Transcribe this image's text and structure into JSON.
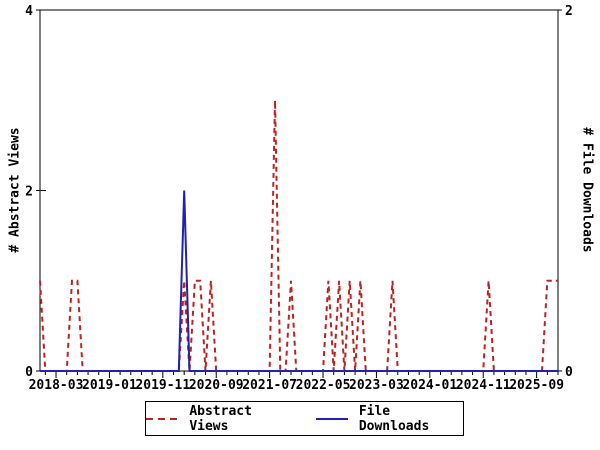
{
  "chart_data": {
    "type": "line",
    "title": "",
    "x_axis": {
      "tick_labels": [
        "2018-03",
        "2019-01",
        "2019-11",
        "2020-09",
        "2021-07",
        "2022-05",
        "2023-03",
        "2024-01",
        "2024-11",
        "2025-09"
      ],
      "tick_months": [
        0,
        10,
        20,
        30,
        40,
        50,
        60,
        70,
        80,
        90
      ],
      "range_months": [
        -3,
        94
      ],
      "minor_tick_step_months": 2
    },
    "y_left": {
      "label": "# Abstract Views",
      "range": [
        0,
        4
      ],
      "ticks": [
        0,
        2,
        4
      ]
    },
    "y_right": {
      "label": "# File Downloads",
      "range": [
        0,
        2
      ],
      "ticks": [
        0,
        2
      ]
    },
    "grid": "off",
    "legend_position": "bottom-center",
    "series": [
      {
        "name": "Abstract Views",
        "color": "#bb2222",
        "style": "dashed",
        "axis": "left",
        "points": [
          [
            "2017-12",
            1
          ],
          [
            "2018-01",
            0
          ],
          [
            "2018-05",
            0
          ],
          [
            "2018-06",
            1
          ],
          [
            "2018-07",
            1
          ],
          [
            "2018-08",
            0
          ],
          [
            "2020-02",
            0
          ],
          [
            "2020-03",
            1
          ],
          [
            "2020-04",
            0
          ],
          [
            "2020-05",
            1
          ],
          [
            "2020-06",
            1
          ],
          [
            "2020-07",
            0
          ],
          [
            "2020-08",
            1
          ],
          [
            "2020-09",
            0
          ],
          [
            "2021-07",
            0
          ],
          [
            "2021-08",
            3
          ],
          [
            "2021-09",
            0
          ],
          [
            "2021-10",
            0
          ],
          [
            "2021-11",
            1
          ],
          [
            "2021-12",
            0
          ],
          [
            "2022-05",
            0
          ],
          [
            "2022-06",
            1
          ],
          [
            "2022-07",
            0
          ],
          [
            "2022-08",
            1
          ],
          [
            "2022-09",
            0
          ],
          [
            "2022-10",
            1
          ],
          [
            "2022-11",
            0
          ],
          [
            "2022-12",
            1
          ],
          [
            "2023-01",
            0
          ],
          [
            "2023-05",
            0
          ],
          [
            "2023-06",
            1
          ],
          [
            "2023-07",
            0
          ],
          [
            "2024-11",
            0
          ],
          [
            "2024-12",
            1
          ],
          [
            "2025-01",
            0
          ],
          [
            "2025-10",
            0
          ],
          [
            "2025-11",
            1
          ],
          [
            "2026-01",
            1
          ]
        ]
      },
      {
        "name": "File Downloads",
        "color": "#2222ad",
        "style": "solid",
        "axis": "right",
        "points": [
          [
            "2017-12",
            0
          ],
          [
            "2020-02",
            0
          ],
          [
            "2020-03",
            1
          ],
          [
            "2020-04",
            0
          ],
          [
            "2026-01",
            0
          ]
        ]
      }
    ]
  }
}
